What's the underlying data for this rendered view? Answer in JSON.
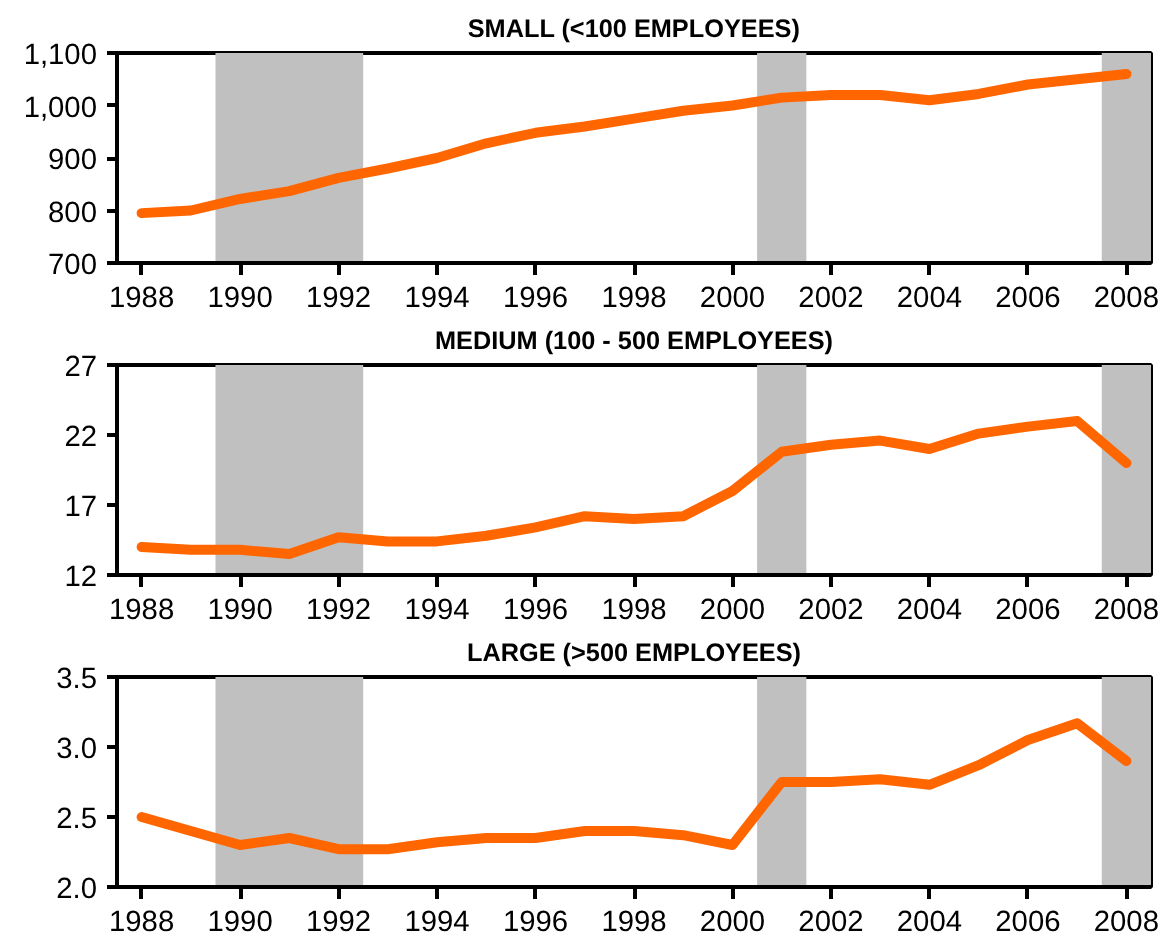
{
  "chart_data": [
    {
      "type": "line",
      "title": "SMALL (<100 EMPLOYEES)",
      "x": [
        1988,
        1989,
        1990,
        1991,
        1992,
        1993,
        1994,
        1995,
        1996,
        1997,
        1998,
        1999,
        2000,
        2001,
        2002,
        2003,
        2004,
        2005,
        2006,
        2007,
        2008
      ],
      "series": [
        {
          "color": "#ff6600",
          "values": [
            795,
            800,
            822,
            837,
            862,
            880,
            900,
            928,
            948,
            960,
            975,
            990,
            1000,
            1015,
            1020,
            1020,
            1010,
            1022,
            1040,
            1050,
            1060
          ]
        }
      ],
      "xlim": [
        1987.5,
        2008.5
      ],
      "xticks": [
        1988,
        1990,
        1992,
        1994,
        1996,
        1998,
        2000,
        2002,
        2004,
        2006,
        2008
      ],
      "ylim": [
        700,
        1100
      ],
      "yticks": [
        700,
        800,
        900,
        {
          "value": 1000,
          "label": "1,000"
        },
        {
          "value": 1100,
          "label": "1,100"
        }
      ],
      "bands": [
        {
          "axis": "x",
          "from": 1989.5,
          "to": 1992.5,
          "color": "#c0c0c0"
        },
        {
          "axis": "x",
          "from": 2000.5,
          "to": 2001.5,
          "color": "#c0c0c0"
        },
        {
          "axis": "x",
          "from": 2007.5,
          "to": 2008.5,
          "color": "#c0c0c0"
        }
      ],
      "grid": false,
      "line_style": "solid"
    },
    {
      "type": "line",
      "title": "MEDIUM (100 - 500 EMPLOYEES)",
      "x": [
        1988,
        1989,
        1990,
        1991,
        1992,
        1993,
        1994,
        1995,
        1996,
        1997,
        1998,
        1999,
        2000,
        2001,
        2002,
        2003,
        2004,
        2005,
        2006,
        2007,
        2008
      ],
      "series": [
        {
          "color": "#ff6600",
          "values": [
            14.0,
            13.8,
            13.8,
            13.5,
            14.7,
            14.4,
            14.4,
            14.8,
            15.4,
            16.2,
            16.0,
            16.2,
            18.0,
            20.8,
            21.3,
            21.6,
            21.0,
            22.1,
            22.6,
            23.0,
            20.0
          ]
        }
      ],
      "xlim": [
        1987.5,
        2008.5
      ],
      "xticks": [
        1988,
        1990,
        1992,
        1994,
        1996,
        1998,
        2000,
        2002,
        2004,
        2006,
        2008
      ],
      "ylim": [
        12,
        27
      ],
      "yticks": [
        12,
        17,
        22,
        27
      ],
      "bands": [
        {
          "axis": "x",
          "from": 1989.5,
          "to": 1992.5,
          "color": "#c0c0c0"
        },
        {
          "axis": "x",
          "from": 2000.5,
          "to": 2001.5,
          "color": "#c0c0c0"
        },
        {
          "axis": "x",
          "from": 2007.5,
          "to": 2008.5,
          "color": "#c0c0c0"
        }
      ],
      "grid": false,
      "line_style": "solid"
    },
    {
      "type": "line",
      "title": "LARGE (>500 EMPLOYEES)",
      "x": [
        1988,
        1989,
        1990,
        1991,
        1992,
        1993,
        1994,
        1995,
        1996,
        1997,
        1998,
        1999,
        2000,
        2001,
        2002,
        2003,
        2004,
        2005,
        2006,
        2007,
        2008
      ],
      "series": [
        {
          "color": "#ff6600",
          "values": [
            2.5,
            2.4,
            2.3,
            2.35,
            2.27,
            2.27,
            2.32,
            2.35,
            2.35,
            2.4,
            2.4,
            2.37,
            2.3,
            2.75,
            2.75,
            2.77,
            2.73,
            2.87,
            3.05,
            3.17,
            2.9
          ]
        }
      ],
      "xlim": [
        1987.5,
        2008.5
      ],
      "xticks": [
        1988,
        1990,
        1992,
        1994,
        1996,
        1998,
        2000,
        2002,
        2004,
        2006,
        2008
      ],
      "ylim": [
        2.0,
        3.5
      ],
      "yticks": [
        {
          "value": 2.0,
          "label": "2.0"
        },
        2.5,
        {
          "value": 3.0,
          "label": "3.0"
        },
        3.5
      ],
      "bands": [
        {
          "axis": "x",
          "from": 1989.5,
          "to": 1992.5,
          "color": "#c0c0c0"
        },
        {
          "axis": "x",
          "from": 2000.5,
          "to": 2001.5,
          "color": "#c0c0c0"
        },
        {
          "axis": "x",
          "from": 2007.5,
          "to": 2008.5,
          "color": "#c0c0c0"
        }
      ],
      "grid": false,
      "line_style": "solid"
    }
  ]
}
